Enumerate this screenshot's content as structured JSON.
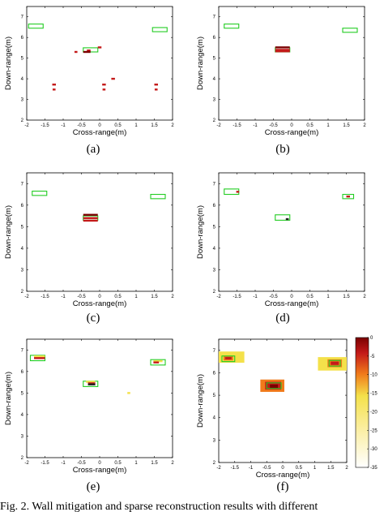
{
  "figure": {
    "caption": "Fig. 2.    Wall mitigation and sparse reconstruction results with different"
  },
  "colors": {
    "wall_box": "#22cc22",
    "strong": "#c41a1a",
    "dark_red": "#7a0000",
    "orange": "#f07a1a",
    "yellow": "#f4e14a",
    "pale": "#fdf3c8"
  },
  "chart_data": [
    {
      "type": "scatter",
      "panel_label": "(a)",
      "xlabel": "Cross-range(m)",
      "ylabel": "Down-range(m)",
      "xlim": [
        -2,
        2
      ],
      "ylim": [
        2,
        7.5
      ],
      "xticks": [
        "-2",
        "-1.5",
        "-1",
        "-0.5",
        "0",
        "0.5",
        "1",
        "1.5",
        "2"
      ],
      "yticks": [
        "2",
        "3",
        "4",
        "5",
        "6",
        "7"
      ],
      "target_boxes": [
        {
          "x0": -1.95,
          "x1": -1.55,
          "y0": 6.45,
          "y1": 6.65
        },
        {
          "x0": -0.45,
          "x1": -0.05,
          "y0": 5.3,
          "y1": 5.5
        },
        {
          "x0": 1.45,
          "x1": 1.85,
          "y0": 6.28,
          "y1": 6.48
        }
      ],
      "detections": [
        {
          "x": -0.65,
          "y": 5.3,
          "w": 0.08,
          "color": "#c41a1a"
        },
        {
          "x": -0.3,
          "y": 5.37,
          "w": 0.1,
          "color": "#c41a1a"
        },
        {
          "x": -0.35,
          "y": 5.3,
          "w": 0.2,
          "color": "#7a0000"
        },
        {
          "x": 0.0,
          "y": 5.52,
          "w": 0.1,
          "color": "#c41a1a"
        },
        {
          "x": -1.25,
          "y": 3.72,
          "w": 0.1,
          "color": "#c41a1a"
        },
        {
          "x": -1.25,
          "y": 3.48,
          "w": 0.08,
          "color": "#c41a1a"
        },
        {
          "x": 0.12,
          "y": 3.72,
          "w": 0.1,
          "color": "#c41a1a"
        },
        {
          "x": 0.12,
          "y": 3.48,
          "w": 0.08,
          "color": "#c41a1a"
        },
        {
          "x": 0.37,
          "y": 4.0,
          "w": 0.1,
          "color": "#c41a1a"
        },
        {
          "x": 1.55,
          "y": 3.72,
          "w": 0.1,
          "color": "#c41a1a"
        },
        {
          "x": 1.55,
          "y": 3.48,
          "w": 0.08,
          "color": "#c41a1a"
        }
      ]
    },
    {
      "type": "scatter",
      "panel_label": "(b)",
      "xlabel": "Cross-range(m)",
      "ylabel": "Down-range(m)",
      "xlim": [
        -2,
        2
      ],
      "ylim": [
        2,
        7.5
      ],
      "xticks": [
        "-2",
        "-1.5",
        "-1",
        "-0.5",
        "0",
        "0.5",
        "1",
        "1.5",
        "2"
      ],
      "yticks": [
        "2",
        "3",
        "4",
        "5",
        "6",
        "7"
      ],
      "target_boxes": [
        {
          "x0": -1.85,
          "x1": -1.45,
          "y0": 6.45,
          "y1": 6.65
        },
        {
          "x0": -0.45,
          "x1": -0.05,
          "y0": 5.3,
          "y1": 5.5
        },
        {
          "x0": 1.4,
          "x1": 1.8,
          "y0": 6.25,
          "y1": 6.45
        }
      ],
      "detections": [
        {
          "x": -0.25,
          "y": 5.52,
          "w": 0.4,
          "color": "#7a0000"
        },
        {
          "x": -0.25,
          "y": 5.4,
          "w": 0.4,
          "color": "#c41a1a"
        },
        {
          "x": -0.25,
          "y": 5.33,
          "w": 0.4,
          "color": "#c41a1a"
        }
      ]
    },
    {
      "type": "scatter",
      "panel_label": "(c)",
      "xlabel": "Cross-range(m)",
      "ylabel": "Down-range(m)",
      "xlim": [
        -2,
        2
      ],
      "ylim": [
        2,
        7.5
      ],
      "xticks": [
        "-2",
        "-1.5",
        "-1",
        "-0.5",
        "0",
        "0.5",
        "1",
        "1.5",
        "2"
      ],
      "yticks": [
        "2",
        "3",
        "4",
        "5",
        "6",
        "7"
      ],
      "target_boxes": [
        {
          "x0": -1.85,
          "x1": -1.45,
          "y0": 6.45,
          "y1": 6.65
        },
        {
          "x0": -0.45,
          "x1": -0.05,
          "y0": 5.3,
          "y1": 5.5
        },
        {
          "x0": 1.4,
          "x1": 1.8,
          "y0": 6.3,
          "y1": 6.5
        }
      ],
      "detections": [
        {
          "x": -0.25,
          "y": 5.55,
          "w": 0.4,
          "color": "#7a0000"
        },
        {
          "x": -0.25,
          "y": 5.4,
          "w": 0.4,
          "color": "#c41a1a"
        },
        {
          "x": -0.25,
          "y": 5.28,
          "w": 0.4,
          "color": "#c41a1a"
        }
      ]
    },
    {
      "type": "scatter",
      "panel_label": "(d)",
      "xlabel": "Cross-range(m)",
      "ylabel": "Down-range(m)",
      "xlim": [
        -2,
        2
      ],
      "ylim": [
        2,
        7.5
      ],
      "xticks": [
        "-2",
        "-1.5",
        "-1",
        "-0.5",
        "0",
        "0.5",
        "1",
        "1.5",
        "2"
      ],
      "yticks": [
        "2",
        "3",
        "4",
        "5",
        "6",
        "7"
      ],
      "target_boxes": [
        {
          "x0": -1.85,
          "x1": -1.45,
          "y0": 6.5,
          "y1": 6.75
        },
        {
          "x0": -0.45,
          "x1": -0.05,
          "y0": 5.3,
          "y1": 5.55
        },
        {
          "x0": 1.4,
          "x1": 1.7,
          "y0": 6.3,
          "y1": 6.5
        }
      ],
      "detections": [
        {
          "x": -1.48,
          "y": 6.62,
          "w": 0.08,
          "color": "#c41a1a"
        },
        {
          "x": -0.12,
          "y": 5.35,
          "w": 0.08,
          "color": "#202020"
        },
        {
          "x": 1.55,
          "y": 6.4,
          "w": 0.1,
          "color": "#c41a1a"
        }
      ]
    },
    {
      "type": "scatter",
      "panel_label": "(e)",
      "xlabel": "Cross-range(m)",
      "ylabel": "Down-range(m)",
      "xlim": [
        -2,
        2
      ],
      "ylim": [
        2,
        7.5
      ],
      "xticks": [
        "-2",
        "-1.5",
        "-1",
        "-0.5",
        "0",
        "0.5",
        "1",
        "1.5",
        "2"
      ],
      "yticks": [
        "2",
        "3",
        "4",
        "5",
        "6",
        "7"
      ],
      "target_boxes": [
        {
          "x0": -1.9,
          "x1": -1.5,
          "y0": 6.5,
          "y1": 6.75
        },
        {
          "x0": -0.45,
          "x1": -0.05,
          "y0": 5.3,
          "y1": 5.55
        },
        {
          "x0": 1.4,
          "x1": 1.8,
          "y0": 6.3,
          "y1": 6.55
        }
      ],
      "detections": [
        {
          "x": -1.65,
          "y": 6.7,
          "w": 0.3,
          "color": "#f4e14a"
        },
        {
          "x": -1.65,
          "y": 6.62,
          "w": 0.3,
          "color": "#c41a1a"
        },
        {
          "x": -0.25,
          "y": 5.52,
          "w": 0.25,
          "color": "#f4e14a"
        },
        {
          "x": -0.22,
          "y": 5.45,
          "w": 0.2,
          "color": "#c41a1a"
        },
        {
          "x": -0.22,
          "y": 5.4,
          "w": 0.2,
          "color": "#202020"
        },
        {
          "x": 0.8,
          "y": 5.0,
          "w": 0.08,
          "color": "#f4e14a"
        },
        {
          "x": 1.6,
          "y": 6.48,
          "w": 0.25,
          "color": "#f4e14a"
        },
        {
          "x": 1.55,
          "y": 6.42,
          "w": 0.15,
          "color": "#c41a1a"
        }
      ]
    },
    {
      "type": "heatmap",
      "panel_label": "(f)",
      "xlabel": "Cross-range(m)",
      "ylabel": "Down-range(m)",
      "xlim": [
        -2,
        2
      ],
      "ylim": [
        2,
        7.5
      ],
      "xticks": [
        "-2",
        "-1.5",
        "-1",
        "-0.5",
        "0",
        "0.5",
        "1",
        "1.5",
        "2"
      ],
      "yticks": [
        "2",
        "3",
        "4",
        "5",
        "6",
        "7"
      ],
      "colorbar": {
        "range": [
          -35,
          0
        ],
        "ticks": [
          "0",
          "-5",
          "-10",
          "-15",
          "-20",
          "-25",
          "-30",
          "-35"
        ]
      },
      "target_boxes": [
        {
          "x0": -1.9,
          "x1": -1.5,
          "y0": 6.5,
          "y1": 6.75
        },
        {
          "x0": -0.5,
          "x1": -0.05,
          "y0": 5.3,
          "y1": 5.55
        },
        {
          "x0": 1.45,
          "x1": 1.8,
          "y0": 6.3,
          "y1": 6.55
        }
      ],
      "blobs": [
        {
          "x0": -2.0,
          "x1": -1.2,
          "y0": 6.45,
          "y1": 6.95,
          "color": "#f4e14a"
        },
        {
          "x0": -1.85,
          "x1": -1.55,
          "y0": 6.55,
          "y1": 6.75,
          "color": "#f07a1a"
        },
        {
          "x0": -1.8,
          "x1": -1.6,
          "y0": 6.6,
          "y1": 6.7,
          "color": "#c41a1a"
        },
        {
          "x0": -0.7,
          "x1": 0.05,
          "y0": 5.15,
          "y1": 5.7,
          "color": "#f07a1a"
        },
        {
          "x0": -0.55,
          "x1": -0.05,
          "y0": 5.25,
          "y1": 5.6,
          "color": "#c41a1a"
        },
        {
          "x0": -0.4,
          "x1": -0.15,
          "y0": 5.32,
          "y1": 5.48,
          "color": "#7a0000"
        },
        {
          "x0": 1.1,
          "x1": 2.0,
          "y0": 6.1,
          "y1": 6.7,
          "color": "#f4e14a"
        },
        {
          "x0": 1.4,
          "x1": 1.85,
          "y0": 6.25,
          "y1": 6.6,
          "color": "#f07a1a"
        },
        {
          "x0": 1.5,
          "x1": 1.75,
          "y0": 6.35,
          "y1": 6.5,
          "color": "#c41a1a"
        }
      ]
    }
  ]
}
